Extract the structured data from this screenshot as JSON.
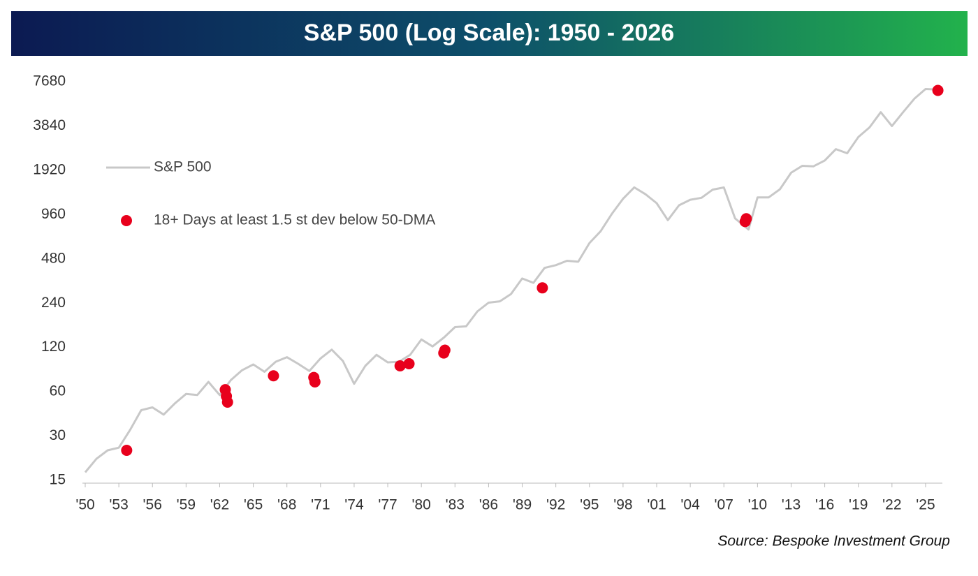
{
  "chart_data": {
    "type": "line",
    "title": "S&P 500 (Log Scale): 1950 - 2026",
    "source": "Source: Bespoke Investment Group",
    "log_scale": true,
    "legend": "upper left",
    "xlim": [
      1950,
      2026.5
    ],
    "ylim": [
      15,
      7680
    ],
    "yticks": [
      15,
      30,
      60,
      120,
      240,
      480,
      960,
      1920,
      3840,
      7680
    ],
    "xticks": [
      {
        "value": 1950,
        "label": "'50"
      },
      {
        "value": 1953,
        "label": "'53"
      },
      {
        "value": 1956,
        "label": "'56"
      },
      {
        "value": 1959,
        "label": "'59"
      },
      {
        "value": 1962,
        "label": "'62"
      },
      {
        "value": 1965,
        "label": "'65"
      },
      {
        "value": 1968,
        "label": "'68"
      },
      {
        "value": 1971,
        "label": "'71"
      },
      {
        "value": 1974,
        "label": "'74"
      },
      {
        "value": 1977,
        "label": "'77"
      },
      {
        "value": 1980,
        "label": "'80"
      },
      {
        "value": 1983,
        "label": "'83"
      },
      {
        "value": 1986,
        "label": "'86"
      },
      {
        "value": 1989,
        "label": "'89"
      },
      {
        "value": 1992,
        "label": "'92"
      },
      {
        "value": 1995,
        "label": "'95"
      },
      {
        "value": 1998,
        "label": "'98"
      },
      {
        "value": 2001,
        "label": "'01"
      },
      {
        "value": 2004,
        "label": "'04"
      },
      {
        "value": 2007,
        "label": "'07"
      },
      {
        "value": 2010,
        "label": "'10"
      },
      {
        "value": 2013,
        "label": "'13"
      },
      {
        "value": 2016,
        "label": "'16"
      },
      {
        "value": 2019,
        "label": "'19"
      },
      {
        "value": 2022,
        "label": "'22"
      },
      {
        "value": 2025,
        "label": "'25"
      }
    ],
    "series": [
      {
        "name": "S&P 500",
        "type": "line",
        "color": "#c8c8c8",
        "x": [
          1950,
          1951,
          1952,
          1953,
          1954,
          1955,
          1956,
          1957,
          1958,
          1959,
          1960,
          1961,
          1962,
          1963,
          1964,
          1965,
          1966,
          1967,
          1968,
          1969,
          1970,
          1971,
          1972,
          1973,
          1974,
          1975,
          1976,
          1977,
          1978,
          1979,
          1980,
          1981,
          1982,
          1983,
          1984,
          1985,
          1986,
          1987,
          1988,
          1989,
          1990,
          1991,
          1992,
          1993,
          1994,
          1995,
          1996,
          1997,
          1998,
          1999,
          2000,
          2001,
          2002,
          2003,
          2004,
          2005,
          2006,
          2007,
          2008,
          2009.2,
          2010,
          2011,
          2012,
          2013,
          2014,
          2015,
          2016,
          2017,
          2018,
          2019,
          2020,
          2021,
          2022,
          2023,
          2024,
          2025,
          2025.9
        ],
        "values": [
          17,
          21,
          24,
          25,
          33,
          45,
          47,
          42,
          50,
          58,
          57,
          70,
          57,
          72,
          84,
          92,
          82,
          96,
          103,
          93,
          83,
          101,
          116,
          97,
          68,
          90,
          107,
          95,
          96,
          107,
          136,
          122,
          140,
          165,
          167,
          211,
          242,
          247,
          277,
          353,
          330,
          417,
          435,
          466,
          459,
          615,
          740,
          970,
          1229,
          1469,
          1320,
          1148,
          880,
          1111,
          1211,
          1248,
          1418,
          1468,
          903,
          760,
          1257,
          1257,
          1426,
          1848,
          2058,
          2043,
          2238,
          2673,
          2506,
          3230,
          3756,
          4766,
          3839,
          4769,
          5881,
          6845,
          6800
        ]
      },
      {
        "name": "18+ Days at least 1.5 st dev below 50-DMA",
        "type": "scatter",
        "color": "#e8001c",
        "x": [
          1953.7,
          1962.5,
          1962.6,
          1962.7,
          1966.8,
          1970.4,
          1970.5,
          1978.1,
          1978.9,
          1982.0,
          1982.1,
          1990.8,
          2008.9,
          2009.0,
          2026.1
        ],
        "values": [
          24,
          62,
          56,
          51,
          77,
          75,
          70,
          90,
          93,
          110,
          115,
          305,
          860,
          900,
          6700
        ]
      }
    ]
  }
}
